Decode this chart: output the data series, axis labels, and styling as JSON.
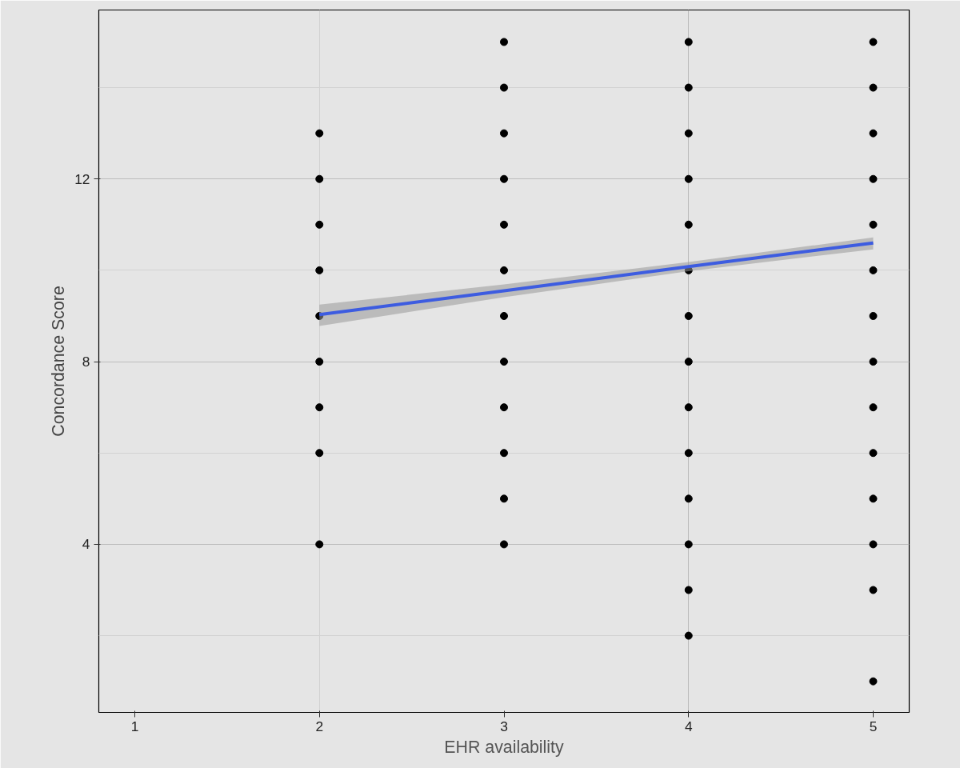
{
  "chart_data": {
    "type": "scatter",
    "xlabel": "EHR availability",
    "ylabel": "Concordance Score",
    "xlim": [
      0.805,
      5.195
    ],
    "ylim": [
      0.32,
      15.7
    ],
    "xticks": [
      1,
      2,
      3,
      4,
      5
    ],
    "yticks": [
      4,
      8,
      12
    ],
    "grid": true,
    "series": [
      {
        "marker": "circle",
        "color": "#000000",
        "x": [
          2,
          2,
          2,
          2,
          2,
          2,
          2,
          2,
          2,
          3,
          3,
          3,
          3,
          3,
          3,
          3,
          3,
          3,
          3,
          3,
          3,
          4,
          4,
          4,
          4,
          4,
          4,
          4,
          4,
          4,
          4,
          4,
          4,
          4,
          4,
          5,
          5,
          5,
          5,
          5,
          5,
          5,
          5,
          5,
          5,
          5,
          5,
          5,
          5
        ],
        "values": [
          13,
          12,
          11,
          10,
          9,
          8,
          7,
          6,
          4,
          15,
          14,
          13,
          12,
          11,
          10,
          9,
          8,
          7,
          6,
          5,
          4,
          15,
          14,
          13,
          12,
          11,
          10,
          9,
          8,
          7,
          6,
          5,
          4,
          3,
          2,
          15,
          14,
          13,
          12,
          11,
          10,
          9,
          8,
          7,
          6,
          5,
          4,
          3,
          1
        ]
      },
      {
        "type": "line",
        "color": "#3d5ce0",
        "x": [
          2,
          3,
          4,
          5
        ],
        "values": [
          9.03,
          9.55,
          10.08,
          10.6
        ],
        "lower": [
          8.78,
          9.41,
          9.98,
          10.46
        ],
        "upper": [
          9.25,
          9.69,
          10.18,
          10.72
        ]
      }
    ]
  }
}
